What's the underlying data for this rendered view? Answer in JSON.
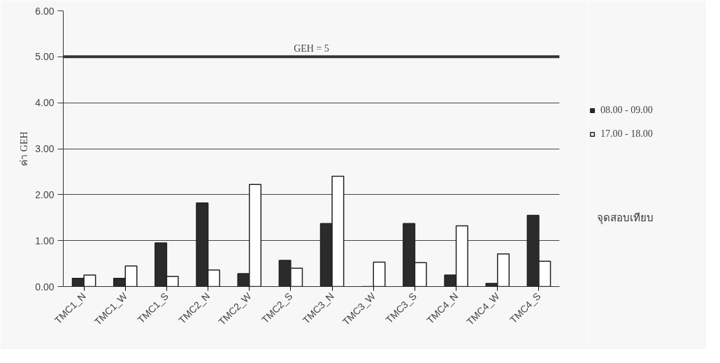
{
  "chart_data": {
    "type": "bar",
    "categories": [
      "TMC1_N",
      "TMC1_W",
      "TMC1_S",
      "TMC2_N",
      "TMC2_W",
      "TMC2_S",
      "TMC3_N",
      "TMC3_W",
      "TMC3_S",
      "TMC4_N",
      "TMC4_W",
      "TMC4_S"
    ],
    "series": [
      {
        "name": "08.00 - 09.00",
        "color": "#2b2b2b",
        "values": [
          0.18,
          0.18,
          0.95,
          1.82,
          0.28,
          0.57,
          1.37,
          0,
          1.37,
          0.25,
          0.07,
          1.55
        ]
      },
      {
        "name": "17.00 - 18.00",
        "color": "#ffffff",
        "values": [
          0.25,
          0.45,
          0.22,
          0.36,
          2.22,
          0.4,
          2.4,
          0.53,
          0.52,
          1.32,
          0.71,
          0.55
        ]
      }
    ],
    "xlabel": "จุดสอบเทียบ",
    "ylabel": "ค่า GEH",
    "ylim": [
      0,
      6
    ],
    "yticks": [
      {
        "value": 0,
        "label": "0.00"
      },
      {
        "value": 1,
        "label": "1.00"
      },
      {
        "value": 2,
        "label": "2.00"
      },
      {
        "value": 3,
        "label": "3.00"
      },
      {
        "value": 4,
        "label": "4.00"
      },
      {
        "value": 5,
        "label": "5.00"
      },
      {
        "value": 6,
        "label": "6.00"
      }
    ],
    "ref_lines": [
      {
        "axis": "y",
        "value": 5,
        "label": "GEH = 5",
        "color": "#333333"
      }
    ],
    "grid": "y",
    "legend": "right"
  }
}
